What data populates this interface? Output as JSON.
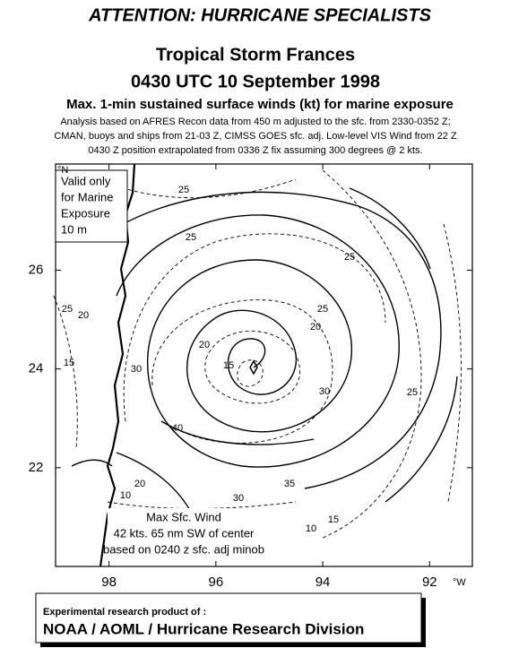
{
  "header": {
    "title": "ATTENTION: HURRICANE SPECIALISTS",
    "storm": "Tropical Storm Frances",
    "time": "0430 UTC 10 September 1998",
    "subtitle": "Max. 1-min sustained surface winds (kt) for marine exposure",
    "notes": [
      "Analysis based on  AFRES Recon data from 450 m adjusted to the sfc. from 2330-0352 Z;",
      "CMAN, buoys and ships from 21-03 Z, CIMSS GOES sfc. adj. Low-level VIS Wind  from 22 Z",
      "0430 Z position extrapolated from 0336 Z fix assuming  300 degrees @ 2 kts."
    ]
  },
  "map": {
    "lon_range": [
      99,
      91.2
    ],
    "lat_range": [
      20,
      28.15
    ],
    "lon_ticks": [
      98,
      96,
      94,
      92
    ],
    "lat_ticks": [
      22,
      24,
      26
    ],
    "lat_unit": "°N",
    "lon_unit": "°W",
    "valid_box": [
      "Valid only",
      "for Marine",
      "Exposure",
      "10 m"
    ],
    "max_wind": [
      "Max Sfc. Wind",
      "42 kts. 65 nm SW of center",
      "based on 0240 z sfc. adj minob"
    ],
    "contour_labels": [
      "25",
      "25",
      "25",
      "25",
      "20",
      "20",
      "15",
      "30",
      "30",
      "40",
      "35",
      "30",
      "20",
      "10",
      "25",
      "15",
      "10",
      "15",
      "25",
      "20"
    ]
  },
  "footer": {
    "credit": "Experimental research product of :",
    "org": "NOAA / AOML / Hurricane Research Division"
  }
}
